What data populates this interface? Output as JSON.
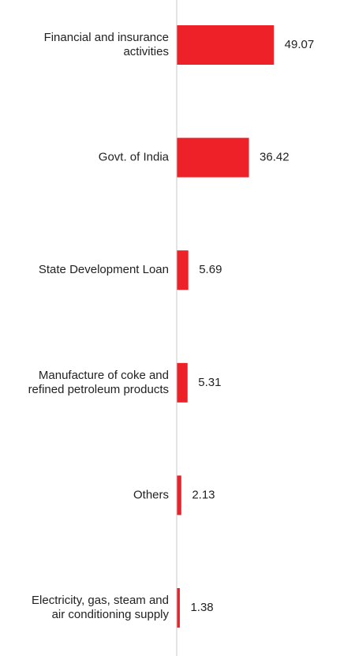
{
  "chart_data": {
    "type": "bar",
    "orientation": "horizontal",
    "categories": [
      [
        "Financial and insurance",
        "activities"
      ],
      [
        "Govt. of India"
      ],
      [
        "State Development Loan"
      ],
      [
        "Manufacture of coke and",
        "refined petroleum products"
      ],
      [
        "Others"
      ],
      [
        "Electricity, gas, steam and",
        "air conditioning supply"
      ]
    ],
    "values": [
      49.07,
      36.42,
      5.69,
      5.31,
      2.13,
      1.38
    ],
    "value_labels": [
      "49.07",
      "36.42",
      "5.69",
      "5.31",
      "2.13",
      "1.38"
    ],
    "title": "",
    "xlabel": "",
    "ylabel": "",
    "xlim": [
      0,
      52
    ],
    "grid": false,
    "legend": "none",
    "bar_color": "#ee2128",
    "axis_color": "#c8c8c8"
  }
}
